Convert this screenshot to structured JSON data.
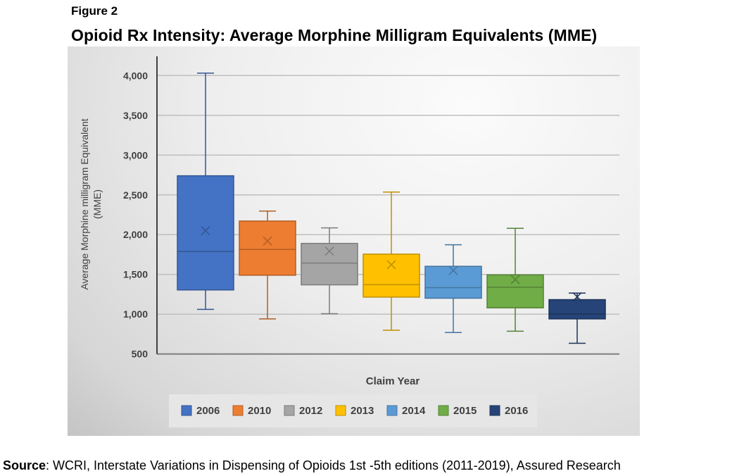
{
  "figure_label": "Figure 2",
  "source": {
    "label": "Source",
    "text": ": WCRI, Interstate Variations in Dispensing of Opioids 1st -5th editions (2011-2019), Assured Research"
  },
  "chart_data": {
    "type": "boxplot",
    "title": "Opioid Rx Intensity: Average Morphine Milligram Equivalents (MME)",
    "xlabel": "Claim Year",
    "ylabel": "Average Morphine milligram Equivalent (MME)",
    "ylabel_lines": [
      "Average Morphine milligram Equivalent",
      "(MME)"
    ],
    "ylim": [
      500,
      4000
    ],
    "yticks": [
      500,
      1000,
      1500,
      2000,
      2500,
      3000,
      3500,
      4000
    ],
    "ytick_labels": [
      "500",
      "1,000",
      "1,500",
      "2,000",
      "2,500",
      "3,000",
      "3,500",
      "4,000"
    ],
    "grid": true,
    "legend_position": "bottom",
    "series": [
      {
        "name": "2006",
        "color": "#4472C4",
        "min": 1060,
        "q1": 1305,
        "median": 1788,
        "q3": 2740,
        "max": 4030,
        "mean": 2050
      },
      {
        "name": "2010",
        "color": "#ED7D31",
        "min": 941,
        "q1": 1490,
        "median": 1814,
        "q3": 2171,
        "max": 2297,
        "mean": 1920
      },
      {
        "name": "2012",
        "color": "#A5A5A5",
        "min": 1006,
        "q1": 1369,
        "median": 1643,
        "q3": 1890,
        "max": 2085,
        "mean": 1793
      },
      {
        "name": "2013",
        "color": "#FFC000",
        "min": 798,
        "q1": 1215,
        "median": 1372,
        "q3": 1755,
        "max": 2536,
        "mean": 1622
      },
      {
        "name": "2014",
        "color": "#5B9BD5",
        "min": 770,
        "q1": 1201,
        "median": 1334,
        "q3": 1602,
        "max": 1873,
        "mean": 1549
      },
      {
        "name": "2015",
        "color": "#70AD47",
        "min": 786,
        "q1": 1080,
        "median": 1339,
        "q3": 1494,
        "max": 2080,
        "mean": 1435
      },
      {
        "name": "2016",
        "color": "#264478",
        "min": 635,
        "q1": 941,
        "median": 1003,
        "q3": 1183,
        "max": 1265,
        "mean": 1218
      }
    ]
  }
}
